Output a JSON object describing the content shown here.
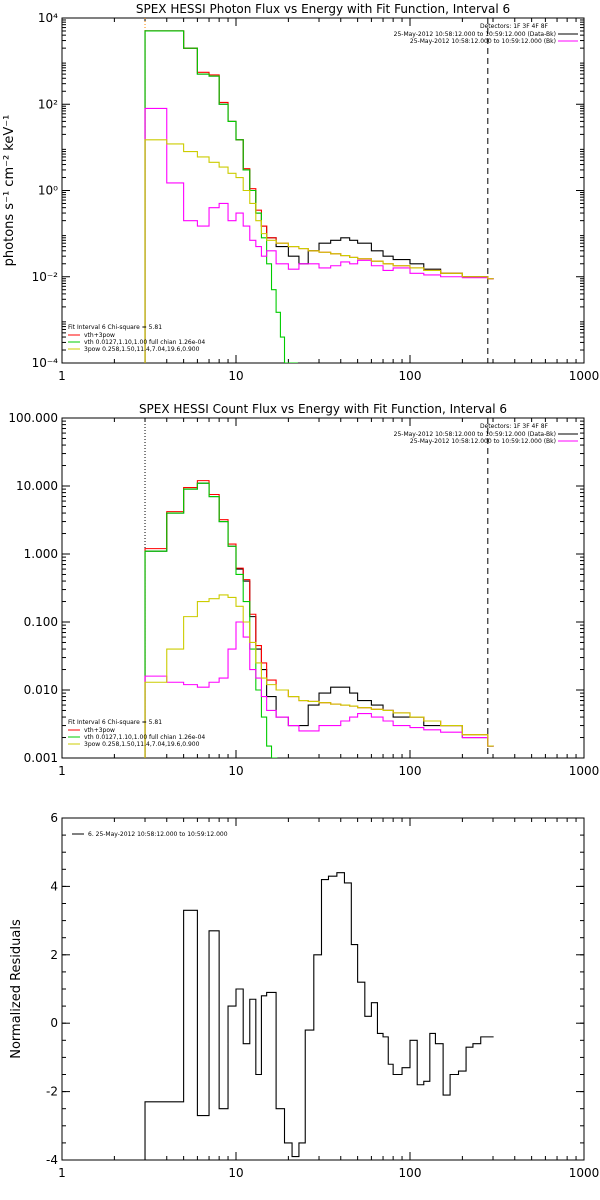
{
  "chart_data": [
    {
      "type": "line",
      "title": "SPEX HESSI Photon Flux vs Energy with Fit Function, Interval 6",
      "ylabel": "photons s⁻¹ cm⁻² keV⁻¹",
      "xlabel": "",
      "xscale": "log",
      "yscale": "log",
      "xlim": [
        1,
        1000
      ],
      "ylim": [
        0.0001,
        10000
      ],
      "xticks": [
        1,
        10,
        100,
        1000
      ],
      "xtick_labels": [
        "1",
        "10",
        "100",
        "1000"
      ],
      "yticks": [
        0.0001,
        0.01,
        1,
        100,
        10000
      ],
      "ytick_labels": [
        "10⁻⁴",
        "10⁻²",
        "10⁰",
        "10²",
        "10⁴"
      ],
      "vlines": [
        {
          "x": 3,
          "style": "dotted",
          "color": "#ff8c00"
        },
        {
          "x": 280,
          "style": "dashed",
          "color": "#000000"
        }
      ],
      "legend_top_right": {
        "header": "Detectors: 1F 3F 4F 8F",
        "entries": [
          {
            "label": "25-May-2012 10:58:12.000 to 10:59:12.000 (Data-Bk)",
            "color": "#000000"
          },
          {
            "label": "25-May-2012 10:58:12.000 to 10:59:12.000 (Bk)",
            "color": "#ff00ff"
          }
        ]
      },
      "legend_bottom_left": {
        "header": "Fit Interval  6    Chi-square = 5.81",
        "entries": [
          {
            "label": "vth+3pow",
            "color": "#ff0000"
          },
          {
            "label": "vth 0.0127,1.10,1.00  full chian 1.26e-04",
            "color": "#00cc00"
          },
          {
            "label": "3pow 0.258,1.50,11.4,7.04,19.6,0.900",
            "color": "#cccc00"
          }
        ]
      },
      "series": [
        {
          "color": "#000000",
          "x": [
            3,
            4,
            5,
            6,
            7,
            8,
            9,
            10,
            11,
            12,
            13,
            14,
            15,
            17,
            20,
            23,
            26,
            30,
            35,
            40,
            45,
            50,
            60,
            70,
            80,
            100,
            120,
            150,
            200,
            280
          ],
          "y": [
            5000,
            5000,
            2000,
            500,
            450,
            100,
            40,
            15,
            3,
            1,
            0.3,
            0.15,
            0.08,
            0.05,
            0.03,
            0.02,
            0.04,
            0.06,
            0.07,
            0.08,
            0.07,
            0.06,
            0.04,
            0.03,
            0.025,
            0.02,
            0.015,
            0.012,
            0.01,
            0.009
          ]
        },
        {
          "color": "#ff0000",
          "x": [
            3,
            4,
            5,
            6,
            7,
            8,
            9,
            10,
            11,
            12,
            13,
            14,
            15,
            17,
            20,
            23,
            26,
            30,
            35,
            40,
            45,
            50,
            60,
            70,
            80,
            100,
            120,
            150,
            200,
            280
          ],
          "y": [
            5000,
            5000,
            2000,
            550,
            480,
            110,
            40,
            15,
            3.2,
            1.1,
            0.35,
            0.15,
            0.08,
            0.06,
            0.05,
            0.045,
            0.04,
            0.037,
            0.034,
            0.031,
            0.028,
            0.026,
            0.023,
            0.02,
            0.018,
            0.016,
            0.014,
            0.012,
            0.01,
            0.009
          ]
        },
        {
          "color": "#00cc00",
          "x": [
            3,
            4,
            5,
            6,
            7,
            8,
            9,
            10,
            11,
            12,
            13,
            14,
            15,
            16,
            17,
            18,
            19,
            20,
            21
          ],
          "y": [
            5000,
            5000,
            2000,
            500,
            450,
            100,
            40,
            15,
            3,
            1,
            0.3,
            0.08,
            0.02,
            0.005,
            0.0015,
            0.0004,
            0.0001,
            0.0001,
            0.0001
          ]
        },
        {
          "color": "#ff00ff",
          "x": [
            3,
            4,
            5,
            6,
            7,
            8,
            9,
            10,
            11,
            12,
            13,
            14,
            15,
            17,
            20,
            23,
            26,
            30,
            35,
            40,
            45,
            50,
            60,
            70,
            80,
            100,
            120,
            150,
            200,
            280
          ],
          "y": [
            80,
            1.5,
            0.2,
            0.15,
            0.4,
            0.5,
            0.2,
            0.3,
            0.15,
            0.07,
            0.05,
            0.03,
            0.04,
            0.02,
            0.015,
            0.02,
            0.02,
            0.016,
            0.018,
            0.022,
            0.02,
            0.024,
            0.018,
            0.014,
            0.016,
            0.012,
            0.011,
            0.01,
            0.0095,
            0.009
          ]
        },
        {
          "color": "#cccc00",
          "x": [
            3,
            4,
            5,
            6,
            7,
            8,
            9,
            10,
            11,
            12,
            13,
            14,
            15,
            17,
            20,
            23,
            26,
            30,
            35,
            40,
            45,
            50,
            60,
            70,
            80,
            100,
            120,
            150,
            200,
            280
          ],
          "y": [
            15,
            12,
            8,
            6,
            4.5,
            3.5,
            2.5,
            2,
            1,
            0.5,
            0.2,
            0.1,
            0.07,
            0.06,
            0.05,
            0.045,
            0.04,
            0.037,
            0.034,
            0.031,
            0.028,
            0.026,
            0.023,
            0.02,
            0.018,
            0.016,
            0.014,
            0.012,
            0.01,
            0.009
          ]
        }
      ]
    },
    {
      "type": "line",
      "title": "SPEX HESSI Count Flux vs Energy with Fit Function, Interval 6",
      "xlabel": "",
      "ylabel": "",
      "xscale": "log",
      "yscale": "log",
      "xlim": [
        1,
        1000
      ],
      "ylim": [
        0.001,
        100
      ],
      "xticks": [
        1,
        10,
        100,
        1000
      ],
      "xtick_labels": [
        "1",
        "10",
        "100",
        "1000"
      ],
      "yticks": [
        0.001,
        0.01,
        0.1,
        1,
        10,
        100
      ],
      "ytick_labels": [
        "0.001",
        "0.010",
        "0.100",
        "1.000",
        "10.000",
        "100.000"
      ],
      "vlines": [
        {
          "x": 3,
          "style": "dotted",
          "color": "#000000"
        },
        {
          "x": 280,
          "style": "dashed",
          "color": "#000000"
        }
      ],
      "legend_top_right": {
        "header": "Detectors: 1F 3F 4F 8F",
        "entries": [
          {
            "label": "25-May-2012 10:58:12.000 to 10:59:12.000 (Data-Bk)",
            "color": "#000000"
          },
          {
            "label": "25-May-2012 10:58:12.000 to 10:59:12.000 (Bk)",
            "color": "#ff00ff"
          }
        ]
      },
      "legend_bottom_left": {
        "header": "Fit Interval  6    Chi-square = 5.81",
        "entries": [
          {
            "label": "vth+3pow",
            "color": "#ff0000"
          },
          {
            "label": "vth 0.0127,1.10,1.00  full chian 1.26e-04",
            "color": "#00cc00"
          },
          {
            "label": "3pow 0.258,1.50,11.4,7.04,19.6,0.900",
            "color": "#cccc00"
          }
        ]
      },
      "series": [
        {
          "color": "#000000",
          "x": [
            3,
            4,
            5,
            6,
            7,
            8,
            9,
            10,
            11,
            12,
            13,
            14,
            15,
            17,
            20,
            23,
            26,
            30,
            35,
            40,
            45,
            50,
            60,
            70,
            80,
            100,
            120,
            150,
            200,
            280
          ],
          "y": [
            1.1,
            4,
            9,
            11,
            7,
            3,
            1.3,
            0.6,
            0.4,
            0.12,
            0.04,
            0.02,
            0.008,
            0.004,
            0.003,
            0.003,
            0.006,
            0.009,
            0.011,
            0.011,
            0.009,
            0.007,
            0.006,
            0.005,
            0.004,
            0.004,
            0.003,
            0.003,
            0.002,
            0.0015
          ]
        },
        {
          "color": "#ff0000",
          "x": [
            3,
            4,
            5,
            6,
            7,
            8,
            9,
            10,
            11,
            12,
            13,
            14,
            15,
            17,
            20,
            23,
            26,
            30,
            35,
            40,
            45,
            50,
            60,
            70,
            80,
            100,
            120,
            150,
            200,
            280
          ],
          "y": [
            1.2,
            4.2,
            9.5,
            12,
            7.5,
            3.2,
            1.4,
            0.62,
            0.42,
            0.13,
            0.045,
            0.025,
            0.014,
            0.01,
            0.008,
            0.007,
            0.0068,
            0.0065,
            0.0062,
            0.006,
            0.0058,
            0.0055,
            0.0052,
            0.005,
            0.0046,
            0.004,
            0.0035,
            0.003,
            0.0022,
            0.0015
          ]
        },
        {
          "color": "#00cc00",
          "x": [
            3,
            4,
            5,
            6,
            7,
            8,
            9,
            10,
            11,
            12,
            13,
            14,
            15,
            16
          ],
          "y": [
            1.1,
            4,
            9,
            11,
            7,
            3,
            1.3,
            0.5,
            0.2,
            0.04,
            0.01,
            0.004,
            0.0015,
            0.001
          ]
        },
        {
          "color": "#ff00ff",
          "x": [
            3,
            4,
            5,
            6,
            7,
            8,
            9,
            10,
            11,
            12,
            13,
            14,
            15,
            17,
            20,
            23,
            26,
            30,
            35,
            40,
            45,
            50,
            60,
            70,
            80,
            100,
            120,
            150,
            200,
            280
          ],
          "y": [
            0.016,
            0.013,
            0.012,
            0.011,
            0.013,
            0.015,
            0.04,
            0.1,
            0.06,
            0.02,
            0.015,
            0.008,
            0.005,
            0.004,
            0.003,
            0.0025,
            0.0025,
            0.003,
            0.003,
            0.0035,
            0.004,
            0.0045,
            0.004,
            0.0035,
            0.003,
            0.0028,
            0.0026,
            0.0024,
            0.002,
            0.0015
          ]
        },
        {
          "color": "#cccc00",
          "x": [
            3,
            4,
            5,
            6,
            7,
            8,
            9,
            10,
            11,
            12,
            13,
            14,
            15,
            17,
            20,
            23,
            26,
            30,
            35,
            40,
            45,
            50,
            60,
            70,
            80,
            100,
            120,
            150,
            200,
            280
          ],
          "y": [
            0.013,
            0.04,
            0.12,
            0.2,
            0.22,
            0.25,
            0.23,
            0.17,
            0.1,
            0.05,
            0.025,
            0.015,
            0.012,
            0.01,
            0.008,
            0.007,
            0.0068,
            0.0065,
            0.0062,
            0.006,
            0.0058,
            0.0055,
            0.0052,
            0.005,
            0.0046,
            0.004,
            0.0035,
            0.003,
            0.0022,
            0.0015
          ]
        }
      ]
    },
    {
      "type": "line",
      "title": "",
      "ylabel": "Normalized Residuals",
      "xlabel": "",
      "xscale": "log",
      "yscale": "linear",
      "xlim": [
        1,
        1000
      ],
      "ylim": [
        -4,
        6
      ],
      "xticks": [
        1,
        10,
        100,
        1000
      ],
      "xtick_labels": [
        "1",
        "10",
        "100",
        "1000"
      ],
      "yticks": [
        -4,
        -2,
        0,
        2,
        4,
        6
      ],
      "ytick_labels": [
        "-4",
        "-2",
        "0",
        "2",
        "4",
        "6"
      ],
      "legend_top_left": {
        "entries": [
          {
            "label": "6. 25-May-2012 10:58:12.000 to 10:59:12.000",
            "color": "#000000"
          }
        ]
      },
      "series": [
        {
          "color": "#000000",
          "x": [
            3,
            4,
            5,
            6,
            7,
            8,
            9,
            10,
            11,
            12,
            13,
            14,
            15,
            17,
            19,
            21,
            23,
            25,
            28,
            31,
            34,
            38,
            42,
            46,
            50,
            55,
            60,
            65,
            70,
            75,
            80,
            90,
            100,
            110,
            120,
            130,
            140,
            155,
            170,
            190,
            210,
            230,
            255,
            280
          ],
          "y": [
            -2.3,
            -2.3,
            3.3,
            -2.7,
            2.7,
            -2.5,
            0.5,
            1.0,
            -0.6,
            0.7,
            -1.5,
            0.8,
            0.9,
            -2.5,
            -3.5,
            -3.9,
            -3.5,
            -0.2,
            2.0,
            4.2,
            4.3,
            4.4,
            4.1,
            2.3,
            1.2,
            0.2,
            0.6,
            -0.3,
            -0.4,
            -1.2,
            -1.5,
            -1.3,
            -0.5,
            -1.8,
            -1.7,
            -0.3,
            -0.6,
            -2.1,
            -1.5,
            -1.4,
            -0.7,
            -0.6,
            -0.4,
            -0.4
          ]
        }
      ]
    }
  ]
}
